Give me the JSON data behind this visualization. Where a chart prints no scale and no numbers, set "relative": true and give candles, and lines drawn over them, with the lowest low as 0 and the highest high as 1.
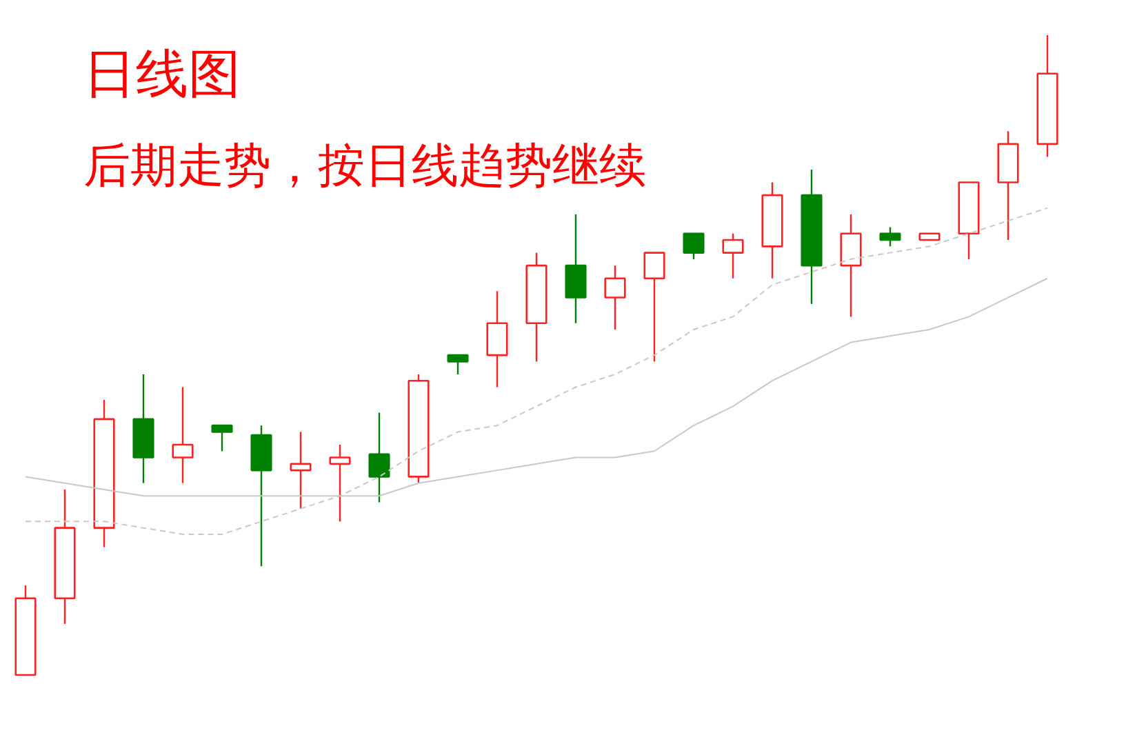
{
  "chart_data": {
    "type": "candlestick",
    "title": "日线图",
    "subtitle": "后期走势，按日线趋势继续",
    "relative": true,
    "categories": [
      null,
      null,
      null,
      null,
      null,
      null,
      null,
      null,
      null,
      null,
      null,
      null,
      null,
      null,
      null,
      null,
      null,
      null,
      null,
      null,
      null,
      null,
      null,
      null,
      null,
      null,
      null
    ],
    "ohlc": [
      [
        0.0,
        0.14,
        0.0,
        0.12
      ],
      [
        0.12,
        0.29,
        0.08,
        0.23
      ],
      [
        0.23,
        0.43,
        0.2,
        0.4
      ],
      [
        0.4,
        0.47,
        0.3,
        0.34
      ],
      [
        0.34,
        0.45,
        0.3,
        0.36
      ],
      [
        0.39,
        0.39,
        0.35,
        0.38
      ],
      [
        0.375,
        0.39,
        0.17,
        0.32
      ],
      [
        0.32,
        0.38,
        0.26,
        0.33
      ],
      [
        0.33,
        0.36,
        0.24,
        0.34
      ],
      [
        0.345,
        0.41,
        0.27,
        0.31
      ],
      [
        0.31,
        0.47,
        0.3,
        0.46
      ],
      [
        0.5,
        0.5,
        0.47,
        0.49
      ],
      [
        0.5,
        0.6,
        0.45,
        0.55
      ],
      [
        0.55,
        0.66,
        0.49,
        0.64
      ],
      [
        0.64,
        0.72,
        0.55,
        0.59
      ],
      [
        0.59,
        0.64,
        0.54,
        0.62
      ],
      [
        0.62,
        0.66,
        0.49,
        0.66
      ],
      [
        0.69,
        0.69,
        0.65,
        0.66
      ],
      [
        0.66,
        0.69,
        0.62,
        0.68
      ],
      [
        0.67,
        0.77,
        0.62,
        0.75
      ],
      [
        0.75,
        0.79,
        0.58,
        0.64
      ],
      [
        0.64,
        0.72,
        0.56,
        0.69
      ],
      [
        0.69,
        0.7,
        0.67,
        0.68
      ],
      [
        0.68,
        0.69,
        0.68,
        0.69
      ],
      [
        0.69,
        0.77,
        0.65,
        0.77
      ],
      [
        0.77,
        0.85,
        0.68,
        0.83
      ],
      [
        0.83,
        1.0,
        0.81,
        0.94
      ]
    ],
    "series": [
      {
        "type": "line",
        "color": "#c8c8c8",
        "line_style": "dashed",
        "values": [
          0.24,
          0.24,
          0.24,
          0.23,
          0.22,
          0.22,
          0.24,
          0.26,
          0.28,
          0.31,
          0.35,
          0.38,
          0.39,
          0.42,
          0.45,
          0.47,
          0.5,
          0.54,
          0.56,
          0.61,
          0.63,
          0.65,
          0.66,
          0.67,
          0.69,
          0.71,
          0.73
        ]
      },
      {
        "type": "line",
        "color": "#c8c8c8",
        "line_style": "solid",
        "values": [
          0.31,
          0.3,
          0.29,
          0.28,
          0.28,
          0.28,
          0.28,
          0.28,
          0.28,
          0.28,
          0.3,
          0.31,
          0.32,
          0.33,
          0.34,
          0.34,
          0.35,
          0.39,
          0.42,
          0.46,
          0.49,
          0.52,
          0.53,
          0.54,
          0.56,
          0.59,
          0.62
        ]
      }
    ],
    "colors": [
      "#ff2020",
      "#ff2020",
      "#ff2020",
      "#008000",
      "#ff2020",
      "#008000",
      "#008000",
      "#ff2020",
      "#ff2020",
      "#008000",
      "#ff2020",
      "#008000",
      "#ff2020",
      "#ff2020",
      "#008000",
      "#ff2020",
      "#ff2020",
      "#008000",
      "#ff2020",
      "#ff2020",
      "#008000",
      "#ff2020",
      "#008000",
      "#ff2020",
      "#ff2020",
      "#ff2020",
      "#ff2020"
    ]
  }
}
